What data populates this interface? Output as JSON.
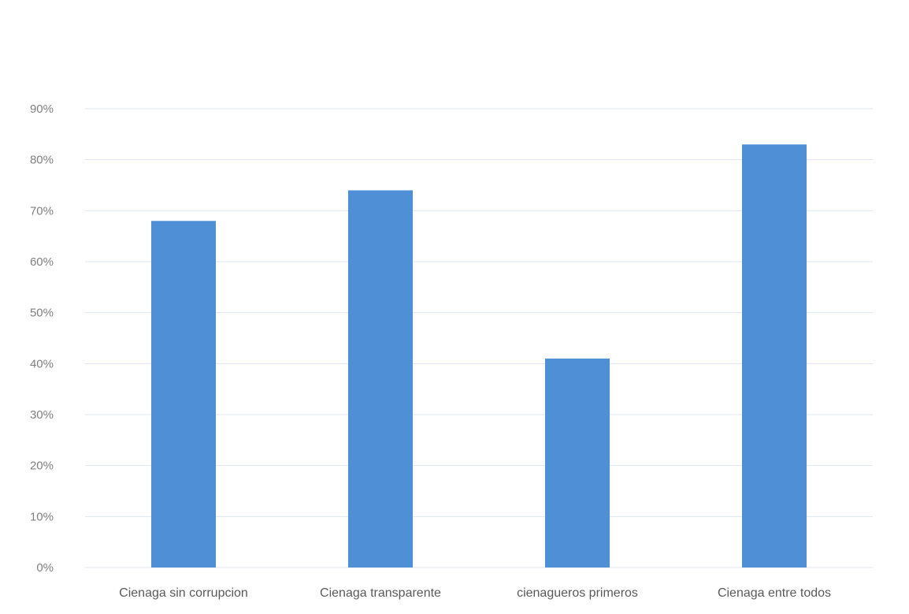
{
  "chart_data": {
    "type": "bar",
    "title": "",
    "xlabel": "",
    "ylabel": "",
    "categories": [
      "Cienaga sin corrupcion",
      "Cienaga transparente",
      "cienagueros primeros",
      "Cienaga entre todos"
    ],
    "values": [
      68,
      74,
      41,
      83
    ],
    "ylim": [
      0,
      90
    ],
    "yticks": [
      "0%",
      "10%",
      "20%",
      "30%",
      "40%",
      "50%",
      "60%",
      "70%",
      "80%",
      "90%"
    ],
    "grid": true,
    "legend": "none",
    "bar_color": "#4f8fd6",
    "grid_color": "#dfe6ef"
  }
}
